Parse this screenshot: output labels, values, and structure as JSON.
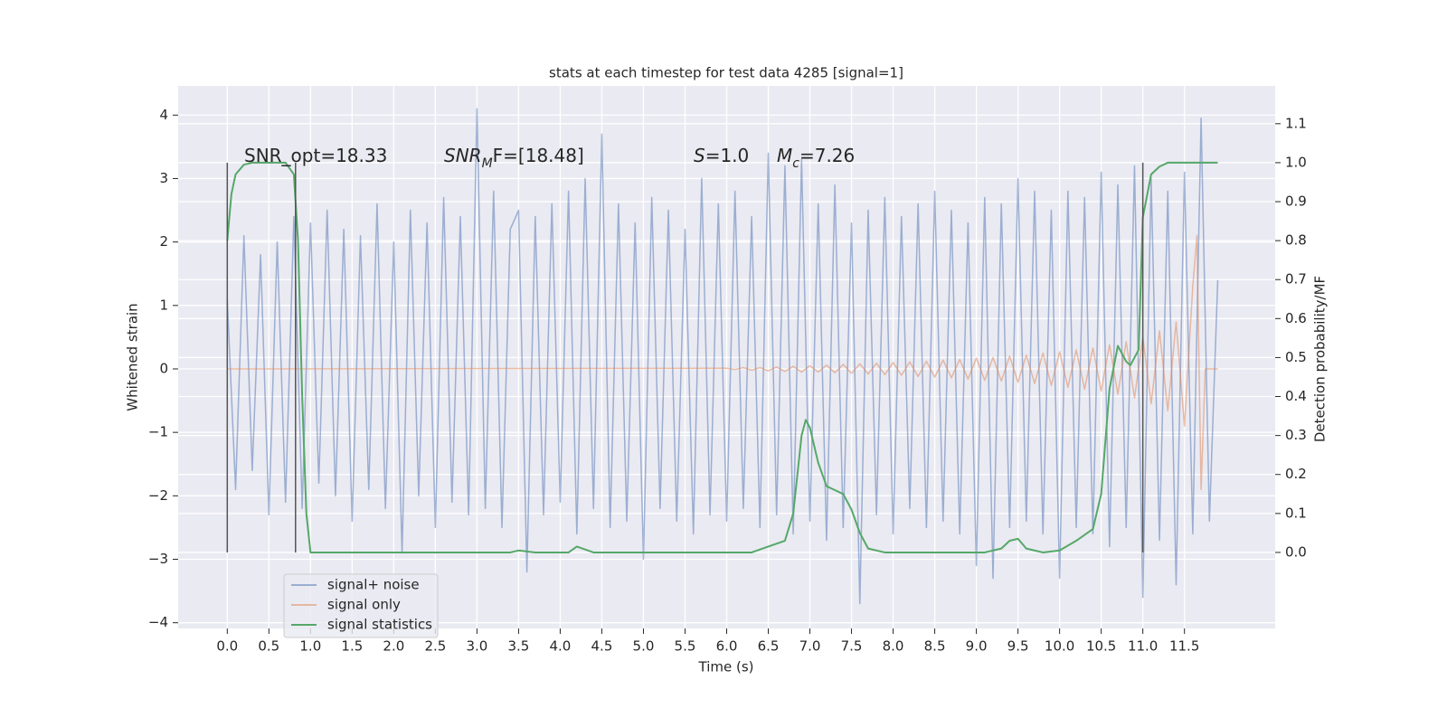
{
  "chart_data": {
    "type": "line",
    "title": "stats at each timestep for test data 4285 [signal=1]",
    "xlabel": "Time (s)",
    "ylabel": "Whitened strain",
    "y2label": "Detection probability/MF",
    "grid": true,
    "legend": "lower left",
    "xlim": [
      -0.59,
      12.59
    ],
    "ylim": [
      -4.09,
      4.46
    ],
    "y2lim": [
      -0.195,
      1.197
    ],
    "xticks": [
      {
        "value": 0,
        "label": "0.0"
      },
      0.5,
      {
        "value": 1,
        "label": "1.0"
      },
      1.5,
      {
        "value": 2,
        "label": "2.0"
      },
      2.5,
      {
        "value": 3,
        "label": "3.0"
      },
      3.5,
      {
        "value": 4,
        "label": "4.0"
      },
      4.5,
      {
        "value": 5,
        "label": "5.0"
      },
      5.5,
      {
        "value": 6,
        "label": "6.0"
      },
      6.5,
      {
        "value": 7,
        "label": "7.0"
      },
      7.5,
      {
        "value": 8,
        "label": "8.0"
      },
      8.5,
      {
        "value": 9,
        "label": "9.0"
      },
      9.5,
      {
        "value": 10,
        "label": "10.0"
      },
      10.5,
      {
        "value": 11,
        "label": "11.0"
      },
      11.5
    ],
    "yticks": [
      {
        "value": -4,
        "label": "−4"
      },
      {
        "value": -3,
        "label": "−3"
      },
      {
        "value": -2,
        "label": "−2"
      },
      {
        "value": -1,
        "label": "−1"
      },
      0,
      1,
      2,
      3,
      4
    ],
    "y2ticks": [
      {
        "value": 0,
        "label": "0.0"
      },
      0.1,
      0.2,
      0.3,
      0.4,
      0.5,
      0.6,
      0.7,
      0.8,
      0.9,
      {
        "value": 1,
        "label": "1.0"
      },
      1.1
    ],
    "annotations": [
      [
        {
          "text": "SNR_opt=18.33"
        }
      ],
      [
        {
          "text": "SNR",
          "style": "italic"
        },
        {
          "text": "M",
          "style": "italic-sub"
        },
        {
          "text": "F=[18.48]"
        }
      ],
      [
        {
          "text": "S",
          "style": "italic"
        },
        {
          "text": "=1.0"
        }
      ],
      [
        {
          "text": "M",
          "style": "italic"
        },
        {
          "text": "c",
          "style": "italic-sub"
        },
        {
          "text": "=7.26"
        }
      ]
    ],
    "vlines": [
      0.0,
      0.82,
      11.0
    ],
    "vline_range": [
      0,
      1
    ],
    "vline_color": "#555555",
    "series": [
      {
        "name": "signal+ noise",
        "color": "#4c72b0",
        "opacity": 0.5,
        "x": [
          0.0,
          0.1,
          0.2,
          0.3,
          0.4,
          0.5,
          0.6,
          0.7,
          0.8,
          0.9,
          1.0,
          1.1,
          1.2,
          1.3,
          1.4,
          1.5,
          1.6,
          1.7,
          1.8,
          1.9,
          2.0,
          2.1,
          2.2,
          2.3,
          2.4,
          2.5,
          2.6,
          2.7,
          2.8,
          2.9,
          3.0,
          3.1,
          3.2,
          3.3,
          3.4,
          3.5,
          3.6,
          3.7,
          3.8,
          3.9,
          4.0,
          4.1,
          4.2,
          4.3,
          4.4,
          4.5,
          4.6,
          4.7,
          4.8,
          4.9,
          5.0,
          5.1,
          5.2,
          5.3,
          5.4,
          5.5,
          5.6,
          5.7,
          5.8,
          5.9,
          6.0,
          6.1,
          6.2,
          6.3,
          6.4,
          6.5,
          6.6,
          6.7,
          6.8,
          6.9,
          7.0,
          7.1,
          7.2,
          7.3,
          7.4,
          7.5,
          7.6,
          7.7,
          7.8,
          7.9,
          8.0,
          8.1,
          8.2,
          8.3,
          8.4,
          8.5,
          8.6,
          8.7,
          8.8,
          8.9,
          9.0,
          9.1,
          9.2,
          9.3,
          9.4,
          9.5,
          9.6,
          9.7,
          9.8,
          9.9,
          10.0,
          10.1,
          10.2,
          10.3,
          10.4,
          10.5,
          10.6,
          10.7,
          10.8,
          10.9,
          11.0,
          11.1,
          11.2,
          11.3,
          11.4,
          11.5,
          11.6,
          11.7,
          11.8,
          11.9
        ],
        "values": [
          1.1,
          -1.9,
          2.1,
          -1.6,
          1.8,
          -2.3,
          2.0,
          -2.1,
          2.4,
          -2.2,
          2.3,
          -1.8,
          2.5,
          -2.0,
          2.2,
          -2.4,
          2.1,
          -1.9,
          2.6,
          -2.2,
          2.0,
          -2.9,
          2.5,
          -2.0,
          2.3,
          -2.5,
          2.7,
          -2.1,
          2.4,
          -2.3,
          4.1,
          -2.2,
          2.8,
          -2.5,
          2.2,
          2.5,
          -3.2,
          2.4,
          -2.3,
          2.6,
          -2.1,
          2.8,
          -2.6,
          3.0,
          -2.2,
          3.7,
          -2.5,
          2.6,
          -2.4,
          2.3,
          -3.0,
          2.7,
          -2.2,
          2.5,
          -2.4,
          2.2,
          -2.6,
          3.0,
          -2.3,
          2.6,
          -2.4,
          2.8,
          -2.2,
          2.4,
          -2.5,
          3.4,
          -2.3,
          3.2,
          -2.6,
          3.3,
          -2.4,
          2.6,
          -2.7,
          2.9,
          -2.5,
          2.3,
          -3.7,
          2.5,
          -2.3,
          2.7,
          -2.6,
          2.4,
          -2.2,
          2.6,
          -2.5,
          2.8,
          -2.4,
          2.5,
          -2.6,
          2.3,
          -3.1,
          2.7,
          -3.3,
          2.6,
          -2.5,
          3.0,
          -2.4,
          2.8,
          -2.6,
          2.5,
          -3.3,
          2.8,
          -2.5,
          2.7,
          -2.6,
          3.1,
          -2.8,
          2.9,
          -2.5,
          3.2,
          -3.6,
          3.0,
          -2.7,
          2.8,
          -3.4,
          3.1,
          -2.6,
          3.95,
          -2.4,
          1.4
        ]
      },
      {
        "name": "signal only",
        "color": "#dd8452",
        "opacity": 0.5,
        "x": [
          0.0,
          6.0,
          6.1,
          6.2,
          6.3,
          6.4,
          6.5,
          6.6,
          6.7,
          6.8,
          6.9,
          7.0,
          7.1,
          7.2,
          7.3,
          7.4,
          7.5,
          7.6,
          7.7,
          7.8,
          7.9,
          8.0,
          8.1,
          8.2,
          8.3,
          8.4,
          8.5,
          8.6,
          8.7,
          8.8,
          8.9,
          9.0,
          9.1,
          9.2,
          9.3,
          9.4,
          9.5,
          9.6,
          9.7,
          9.8,
          9.9,
          10.0,
          10.1,
          10.2,
          10.3,
          10.4,
          10.5,
          10.6,
          10.7,
          10.8,
          10.9,
          11.0,
          11.1,
          11.2,
          11.3,
          11.4,
          11.5,
          11.6,
          11.65,
          11.7,
          11.75,
          11.9
        ],
        "values": [
          0.0,
          0.01,
          -0.01,
          0.02,
          -0.02,
          0.02,
          -0.03,
          0.03,
          -0.04,
          0.04,
          -0.05,
          0.05,
          -0.05,
          0.06,
          -0.06,
          0.07,
          -0.07,
          0.08,
          -0.08,
          0.09,
          -0.09,
          0.1,
          -0.1,
          0.11,
          -0.12,
          0.12,
          -0.13,
          0.14,
          -0.14,
          0.15,
          -0.16,
          0.17,
          -0.18,
          0.18,
          -0.19,
          0.2,
          -0.21,
          0.22,
          -0.23,
          0.25,
          -0.26,
          0.27,
          -0.29,
          0.3,
          -0.32,
          0.33,
          -0.35,
          0.38,
          -0.4,
          0.43,
          -0.46,
          0.5,
          -0.55,
          0.6,
          -0.66,
          0.74,
          -0.9,
          1.3,
          2.1,
          -1.9,
          0.0,
          0.0
        ]
      },
      {
        "name": "signal statistics",
        "color": "#55a868",
        "axis": "y2",
        "x": [
          0.0,
          0.05,
          0.1,
          0.2,
          0.3,
          0.7,
          0.8,
          0.85,
          0.9,
          0.95,
          1.0,
          1.1,
          3.4,
          3.5,
          3.7,
          4.1,
          4.2,
          4.4,
          6.3,
          6.5,
          6.7,
          6.8,
          6.9,
          6.95,
          7.0,
          7.1,
          7.2,
          7.3,
          7.4,
          7.5,
          7.6,
          7.7,
          7.9,
          9.1,
          9.3,
          9.4,
          9.5,
          9.6,
          9.8,
          10.0,
          10.2,
          10.4,
          10.5,
          10.6,
          10.7,
          10.8,
          10.85,
          10.95,
          11.0,
          11.1,
          11.2,
          11.3,
          11.9
        ],
        "values": [
          0.8,
          0.92,
          0.97,
          0.995,
          1.0,
          1.0,
          0.97,
          0.8,
          0.4,
          0.1,
          0.0,
          0.0,
          0.0,
          0.005,
          0.0,
          0.0,
          0.015,
          0.0,
          0.0,
          0.015,
          0.03,
          0.1,
          0.3,
          0.34,
          0.32,
          0.23,
          0.17,
          0.16,
          0.15,
          0.11,
          0.05,
          0.01,
          0.0,
          0.0,
          0.01,
          0.03,
          0.035,
          0.01,
          0.0,
          0.005,
          0.03,
          0.06,
          0.15,
          0.42,
          0.53,
          0.49,
          0.48,
          0.52,
          0.86,
          0.97,
          0.99,
          1.0,
          1.0
        ]
      }
    ]
  }
}
